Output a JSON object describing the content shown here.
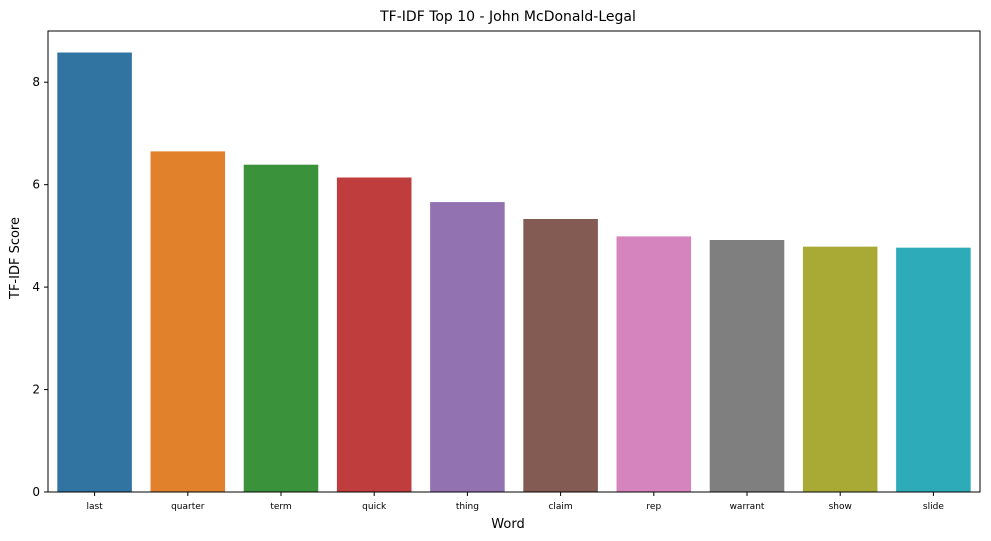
{
  "chart_data": {
    "type": "bar",
    "title": "TF-IDF Top 10 - John McDonald-Legal",
    "xlabel": "Word",
    "ylabel": "TF-IDF Score",
    "categories": [
      "last",
      "quarter",
      "term",
      "quick",
      "thing",
      "claim",
      "rep",
      "warrant",
      "show",
      "slide"
    ],
    "values": [
      8.58,
      6.65,
      6.39,
      6.14,
      5.66,
      5.33,
      4.99,
      4.92,
      4.79,
      4.77
    ],
    "colors": [
      "#3274a1",
      "#e1812c",
      "#3a923a",
      "#c03d3e",
      "#9372b2",
      "#845b53",
      "#d684bd",
      "#7f7f7f",
      "#a9aa35",
      "#2eabb8"
    ],
    "yticks": [
      0,
      2,
      4,
      6,
      8
    ],
    "ylim": [
      0,
      9.0
    ],
    "grid": false,
    "legend": "none"
  }
}
